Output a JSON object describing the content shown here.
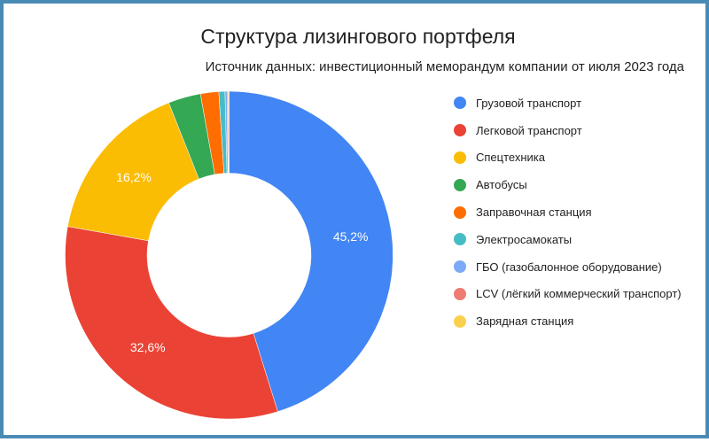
{
  "chart_data": {
    "type": "pie",
    "subtype": "donut",
    "title": "Структура лизингового портфеля",
    "subtitle": "Источник данных: инвестиционный меморандум компании от июля 2023 года",
    "legend_position": "right",
    "labels": [
      "Грузовой транспорт",
      "Легковой транспорт",
      "Спецтехника",
      "Автобусы",
      "Заправочная станция",
      "Электросамокаты",
      "ГБО (газобалонное оборудование)",
      "LCV (лёгкий коммерческий транспорт)",
      "Зарядная станция"
    ],
    "values": [
      45.2,
      32.6,
      16.2,
      3.2,
      1.8,
      0.6,
      0.2,
      0.1,
      0.1
    ],
    "value_labels": [
      "45,2%",
      "32,6%",
      "16,2%",
      "",
      "",
      "",
      "",
      "",
      ""
    ],
    "colors": [
      "#4285f4",
      "#ea4335",
      "#fbbc04",
      "#34a853",
      "#ff6d01",
      "#46bdc6",
      "#7baaf7",
      "#f07b72",
      "#fcd04f"
    ],
    "unit": "%"
  },
  "frame": {
    "border_color": "#4a8bb6"
  }
}
